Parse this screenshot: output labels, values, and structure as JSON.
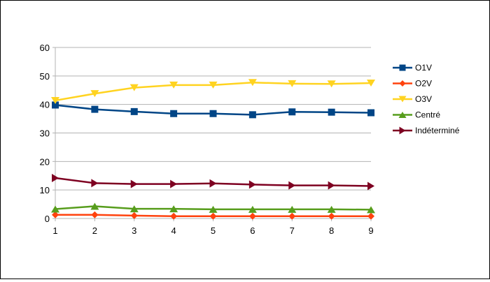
{
  "chart_data": {
    "type": "line",
    "x": [
      1,
      2,
      3,
      4,
      5,
      6,
      7,
      8,
      9
    ],
    "ylim": [
      0,
      60
    ],
    "yticks": [
      0,
      10,
      20,
      30,
      40,
      50,
      60
    ],
    "grid": "horizontal",
    "legend_position": "right",
    "series": [
      {
        "name": "O1V",
        "color": "#004586",
        "marker": "square",
        "values": [
          39.8,
          38.3,
          37.5,
          36.8,
          36.8,
          36.4,
          37.4,
          37.3,
          37.1
        ]
      },
      {
        "name": "O2V",
        "color": "#ff420e",
        "marker": "diamond",
        "values": [
          1.3,
          1.3,
          1.0,
          0.8,
          0.8,
          0.8,
          0.8,
          0.8,
          0.8
        ]
      },
      {
        "name": "O3V",
        "color": "#ffd320",
        "marker": "triangle-down",
        "values": [
          41.4,
          43.8,
          45.9,
          46.8,
          46.8,
          47.7,
          47.3,
          47.2,
          47.5
        ]
      },
      {
        "name": "Centré",
        "color": "#579d1c",
        "marker": "triangle-up",
        "values": [
          3.3,
          4.3,
          3.4,
          3.4,
          3.2,
          3.2,
          3.2,
          3.2,
          3.1
        ]
      },
      {
        "name": "Indéterminé",
        "color": "#7e0021",
        "marker": "triangle-right",
        "values": [
          14.2,
          12.4,
          12.1,
          12.1,
          12.3,
          11.9,
          11.6,
          11.6,
          11.4
        ]
      }
    ]
  }
}
